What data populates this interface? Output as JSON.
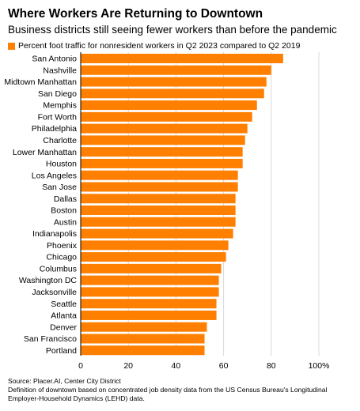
{
  "header": {
    "title": "Where Workers Are Returning to Downtown",
    "subtitle": "Business districts still seeing fewer workers than before the pandemic"
  },
  "legend": {
    "label": "Percent foot traffic for nonresident workers in Q2 2023 compared to Q2 2019",
    "color": "#ff7f00"
  },
  "footer": {
    "source": "Source: Placer.AI, Center City District",
    "note_line1": "Definition of downtown based on concentrated job density data from the US Census Bureau's Longitudinal",
    "note_line2": "Employer-Household Dynamics (LEHD) data."
  },
  "chart_data": {
    "type": "bar",
    "orientation": "horizontal",
    "categories": [
      "San Antonio",
      "Nashville",
      "Midtown Manhattan",
      "San Diego",
      "Memphis",
      "Fort Worth",
      "Philadelphia",
      "Charlotte",
      "Lower Manhattan",
      "Houston",
      "Los Angeles",
      "San Jose",
      "Dallas",
      "Boston",
      "Austin",
      "Indianapolis",
      "Phoenix",
      "Chicago",
      "Columbus",
      "Washington DC",
      "Jacksonville",
      "Seattle",
      "Atlanta",
      "Denver",
      "San Francisco",
      "Portland"
    ],
    "values": [
      85,
      80,
      78,
      77,
      74,
      72,
      70,
      69,
      68,
      68,
      66,
      66,
      65,
      65,
      65,
      64,
      62,
      61,
      59,
      58,
      58,
      57,
      57,
      53,
      52,
      52
    ],
    "xlim": [
      0,
      100
    ],
    "x_ticks": [
      "0",
      "20",
      "40",
      "60",
      "80",
      "100%"
    ],
    "grid": true,
    "bar_color": "#ff7f00",
    "grid_color": "#d9d9d9"
  }
}
